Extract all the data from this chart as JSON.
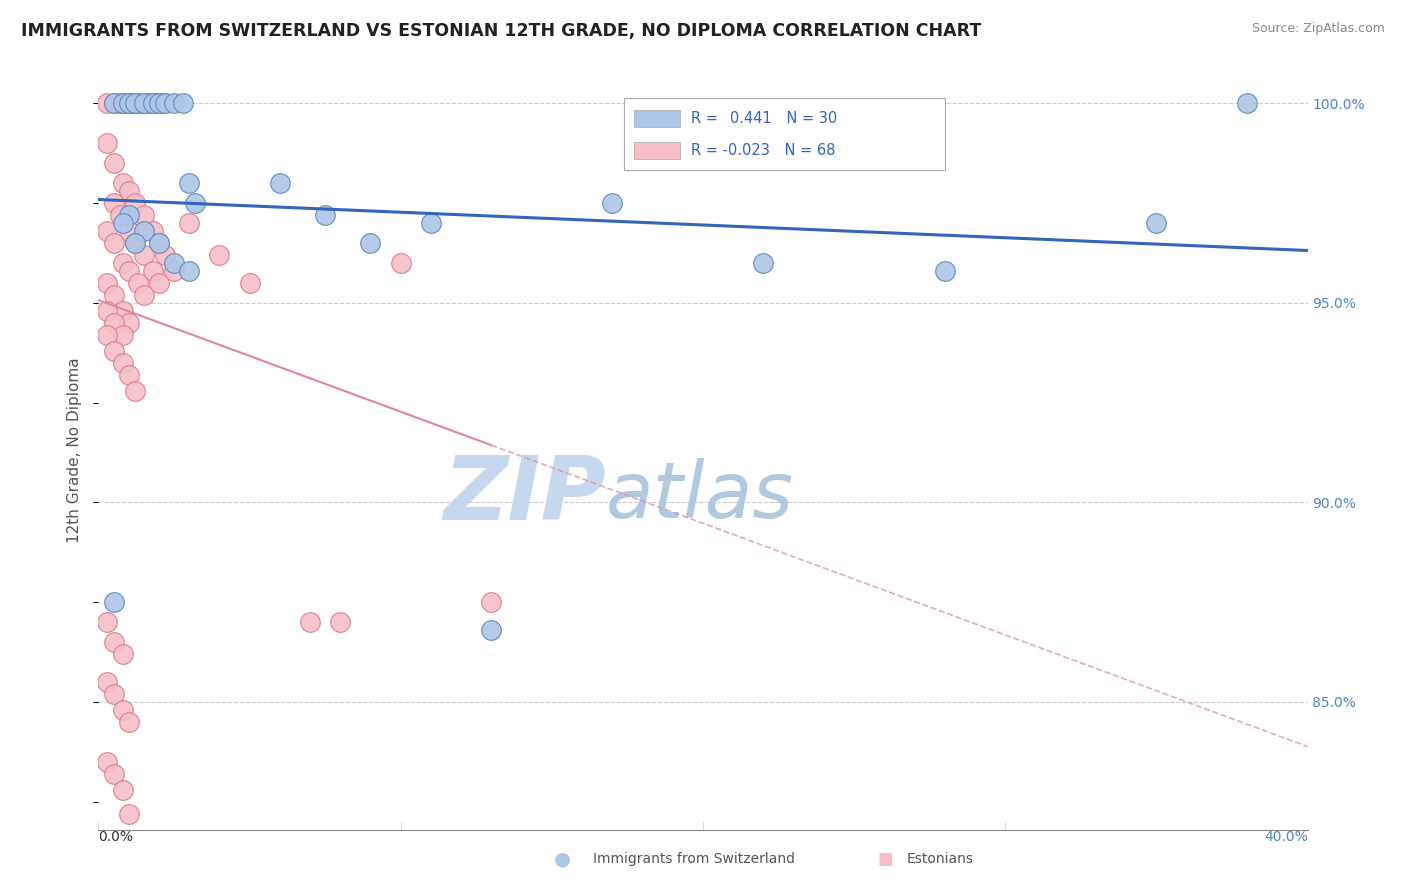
{
  "title": "IMMIGRANTS FROM SWITZERLAND VS ESTONIAN 12TH GRADE, NO DIPLOMA CORRELATION CHART",
  "source": "Source: ZipAtlas.com",
  "ylabel": "12th Grade, No Diploma",
  "xlim": [
    0.0,
    0.4
  ],
  "ylim": [
    0.818,
    1.008
  ],
  "r_blue": 0.441,
  "n_blue": 30,
  "r_pink": -0.023,
  "n_pink": 68,
  "blue_color": "#aec6e8",
  "blue_edge": "#5588bb",
  "pink_color": "#f5bfc8",
  "pink_edge": "#dd7788",
  "blue_line_color": "#3366bb",
  "pink_line_color": "#dd8899",
  "watermark_zip_color": "#c5d8ee",
  "watermark_atlas_color": "#b8cce0",
  "background_color": "#ffffff",
  "grid_color": "#cccccc",
  "ytick_vals": [
    0.85,
    0.9,
    0.95,
    1.0
  ],
  "ytick_labels": [
    "85.0%",
    "90.0%",
    "95.0%",
    "100.0%"
  ],
  "blue_points_x": [
    0.005,
    0.008,
    0.01,
    0.012,
    0.015,
    0.018,
    0.02,
    0.022,
    0.025,
    0.028,
    0.03,
    0.032,
    0.01,
    0.015,
    0.02,
    0.025,
    0.03,
    0.008,
    0.012,
    0.005,
    0.06,
    0.075,
    0.09,
    0.11,
    0.13,
    0.17,
    0.22,
    0.28,
    0.35,
    0.38
  ],
  "blue_points_y": [
    1.0,
    1.0,
    1.0,
    1.0,
    1.0,
    1.0,
    1.0,
    1.0,
    1.0,
    1.0,
    0.98,
    0.975,
    0.972,
    0.968,
    0.965,
    0.96,
    0.958,
    0.97,
    0.965,
    0.875,
    0.98,
    0.972,
    0.965,
    0.97,
    0.868,
    0.975,
    0.96,
    0.958,
    0.97,
    1.0
  ],
  "pink_points_x": [
    0.003,
    0.005,
    0.007,
    0.008,
    0.01,
    0.01,
    0.012,
    0.013,
    0.015,
    0.015,
    0.017,
    0.018,
    0.02,
    0.02,
    0.022,
    0.003,
    0.005,
    0.008,
    0.01,
    0.012,
    0.015,
    0.018,
    0.02,
    0.022,
    0.025,
    0.005,
    0.007,
    0.01,
    0.012,
    0.015,
    0.018,
    0.02,
    0.003,
    0.005,
    0.008,
    0.01,
    0.013,
    0.015,
    0.003,
    0.005,
    0.008,
    0.01,
    0.003,
    0.005,
    0.008,
    0.003,
    0.005,
    0.008,
    0.01,
    0.012,
    0.03,
    0.04,
    0.05,
    0.07,
    0.1,
    0.13,
    0.08,
    0.003,
    0.005,
    0.008,
    0.003,
    0.005,
    0.008,
    0.01,
    0.003,
    0.005,
    0.008,
    0.01
  ],
  "pink_points_y": [
    1.0,
    1.0,
    1.0,
    1.0,
    1.0,
    1.0,
    1.0,
    1.0,
    1.0,
    1.0,
    1.0,
    1.0,
    1.0,
    1.0,
    1.0,
    0.99,
    0.985,
    0.98,
    0.978,
    0.975,
    0.972,
    0.968,
    0.965,
    0.962,
    0.958,
    0.975,
    0.972,
    0.968,
    0.965,
    0.962,
    0.958,
    0.955,
    0.968,
    0.965,
    0.96,
    0.958,
    0.955,
    0.952,
    0.955,
    0.952,
    0.948,
    0.945,
    0.948,
    0.945,
    0.942,
    0.942,
    0.938,
    0.935,
    0.932,
    0.928,
    0.97,
    0.962,
    0.955,
    0.87,
    0.96,
    0.875,
    0.87,
    0.87,
    0.865,
    0.862,
    0.855,
    0.852,
    0.848,
    0.845,
    0.835,
    0.832,
    0.828,
    0.822
  ]
}
